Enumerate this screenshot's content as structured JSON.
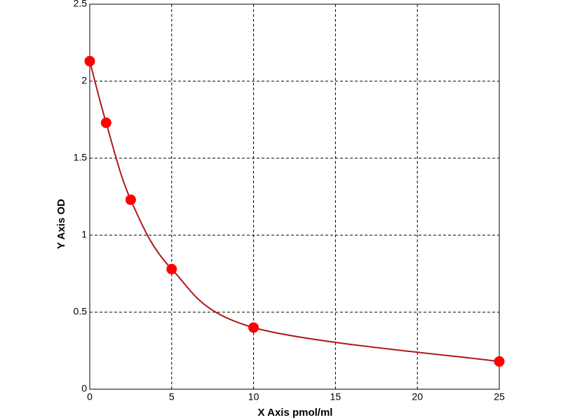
{
  "chart_data": {
    "type": "scatter",
    "x_label": "X Axis pmol/ml",
    "y_label": "Y Axis OD",
    "x": [
      0,
      1,
      2.5,
      5,
      10,
      25
    ],
    "series": [
      {
        "color": "#ff0000",
        "line_color": "#b01818",
        "values": [
          2.13,
          1.73,
          1.23,
          0.78,
          0.4,
          0.18
        ]
      }
    ],
    "fit_curve": true,
    "xlim": [
      0,
      25
    ],
    "xticks": [
      0,
      5,
      10,
      15,
      20,
      25
    ],
    "ylim": [
      0,
      2.5
    ],
    "yticks": [
      0,
      0.5,
      1,
      1.5,
      2,
      2.5
    ],
    "grid": true
  }
}
